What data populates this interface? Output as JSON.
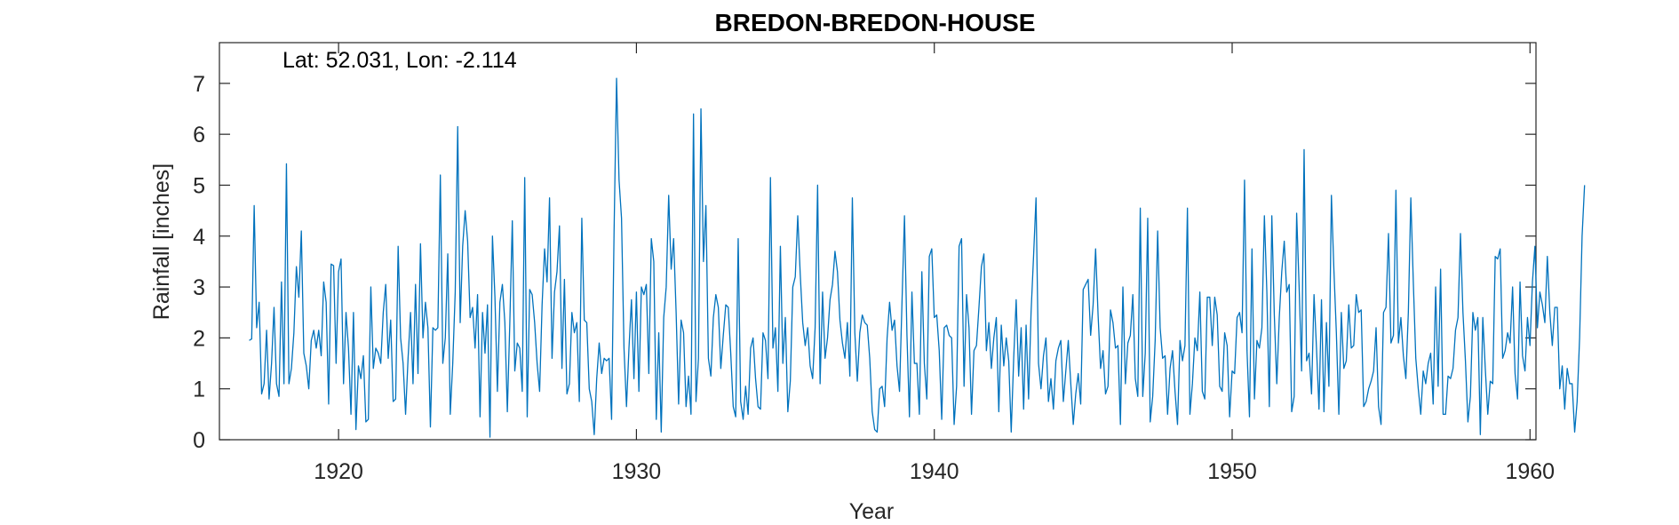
{
  "chart_data": {
    "type": "line",
    "title": "BREDON-BREDON-HOUSE",
    "xlabel": "Year",
    "ylabel": "Rainfall [inches]",
    "annotation": "Lat: 52.031, Lon: -2.114",
    "xlim": [
      1916,
      1960.2
    ],
    "ylim": [
      0,
      7.8
    ],
    "xticks": [
      1920,
      1930,
      1940,
      1950,
      1960
    ],
    "yticks": [
      0,
      1,
      2,
      3,
      4,
      5,
      6,
      7
    ],
    "grid": false,
    "colors": {
      "line": "#0072BD",
      "axis": "#262626"
    },
    "x_start": 1917.0,
    "x_step": 0.08333,
    "series": [
      {
        "values": [
          1.95,
          1.98,
          4.6,
          2.2,
          2.7,
          0.9,
          1.1,
          2.15,
          0.8,
          1.5,
          2.6,
          1.1,
          0.85,
          3.1,
          1.1,
          5.42,
          1.1,
          1.4,
          2.1,
          3.4,
          2.8,
          4.1,
          1.7,
          1.45,
          1.0,
          1.95,
          2.15,
          1.8,
          2.15,
          1.65,
          3.1,
          2.7,
          0.7,
          3.45,
          3.42,
          1.5,
          3.3,
          3.55,
          1.1,
          2.5,
          1.8,
          0.5,
          2.5,
          0.2,
          1.45,
          1.2,
          1.65,
          0.35,
          0.4,
          3.0,
          1.4,
          1.8,
          1.7,
          1.5,
          2.5,
          3.05,
          1.6,
          2.35,
          0.75,
          0.8,
          3.8,
          2.0,
          1.5,
          0.5,
          1.6,
          2.5,
          1.1,
          3.05,
          1.3,
          3.85,
          2.0,
          2.7,
          2.2,
          0.25,
          2.2,
          2.15,
          2.2,
          5.2,
          1.5,
          2.0,
          3.65,
          0.5,
          1.5,
          2.9,
          6.15,
          2.3,
          3.8,
          4.5,
          3.9,
          2.4,
          2.6,
          1.8,
          2.85,
          0.45,
          2.5,
          1.7,
          2.65,
          0.05,
          4.0,
          2.8,
          0.95,
          2.7,
          3.05,
          2.3,
          0.55,
          2.3,
          4.3,
          1.35,
          1.9,
          1.8,
          0.95,
          5.15,
          0.45,
          2.95,
          2.85,
          2.3,
          1.5,
          0.95,
          2.65,
          3.75,
          3.1,
          4.75,
          1.6,
          2.9,
          3.3,
          4.2,
          1.4,
          3.15,
          0.9,
          1.1,
          2.5,
          2.1,
          2.3,
          0.75,
          4.35,
          2.35,
          2.3,
          1.0,
          0.75,
          0.1,
          1.2,
          1.9,
          1.3,
          1.6,
          1.55,
          1.6,
          0.4,
          4.1,
          7.1,
          5.1,
          4.35,
          1.8,
          0.65,
          1.8,
          2.75,
          1.2,
          2.9,
          0.95,
          3.0,
          2.85,
          3.05,
          1.3,
          3.95,
          3.5,
          0.4,
          2.1,
          0.15,
          2.4,
          3.0,
          4.8,
          3.35,
          3.95,
          2.5,
          0.7,
          2.35,
          2.1,
          0.65,
          1.25,
          0.5,
          6.4,
          0.75,
          1.6,
          6.5,
          3.5,
          4.6,
          1.6,
          1.25,
          2.4,
          2.85,
          2.6,
          1.4,
          2.05,
          2.65,
          2.6,
          1.7,
          0.65,
          0.45,
          3.95,
          0.75,
          0.4,
          1.05,
          0.5,
          1.8,
          2.0,
          1.2,
          0.65,
          0.6,
          2.1,
          1.95,
          1.2,
          5.15,
          1.8,
          2.2,
          0.95,
          3.8,
          1.5,
          2.4,
          0.55,
          1.15,
          3.0,
          3.2,
          4.4,
          3.25,
          2.3,
          1.85,
          2.2,
          1.45,
          1.2,
          2.2,
          5.0,
          1.1,
          2.9,
          1.6,
          2.0,
          2.75,
          3.05,
          3.7,
          3.3,
          2.35,
          1.9,
          1.6,
          2.3,
          1.25,
          4.75,
          2.1,
          1.15,
          2.1,
          2.45,
          2.3,
          2.25,
          1.6,
          0.55,
          0.2,
          0.15,
          1.0,
          1.05,
          0.65,
          2.0,
          2.7,
          2.15,
          2.35,
          1.45,
          0.95,
          2.7,
          4.4,
          2.05,
          0.45,
          2.9,
          1.5,
          1.5,
          0.5,
          3.3,
          1.5,
          0.8,
          3.6,
          3.75,
          2.4,
          2.45,
          1.75,
          0.4,
          2.2,
          2.25,
          2.05,
          2.0,
          0.3,
          1.05,
          3.8,
          3.95,
          1.05,
          2.85,
          2.2,
          0.5,
          1.75,
          1.85,
          2.6,
          3.4,
          3.65,
          1.75,
          2.3,
          1.4,
          2.0,
          2.4,
          0.55,
          2.25,
          1.45,
          2.0,
          1.55,
          0.15,
          1.6,
          2.75,
          1.25,
          2.2,
          0.6,
          2.25,
          0.8,
          2.5,
          3.6,
          4.75,
          1.5,
          1.0,
          1.65,
          2.0,
          0.75,
          1.2,
          0.6,
          1.55,
          1.8,
          1.95,
          0.75,
          1.35,
          1.95,
          1.1,
          0.3,
          0.9,
          1.3,
          0.7,
          2.95,
          3.05,
          3.15,
          2.05,
          2.65,
          3.75,
          2.45,
          1.4,
          1.75,
          0.9,
          1.05,
          2.55,
          2.3,
          1.8,
          1.85,
          0.3,
          3.0,
          1.1,
          1.9,
          2.05,
          2.85,
          1.2,
          0.85,
          4.55,
          0.85,
          1.7,
          4.35,
          0.35,
          0.85,
          1.95,
          4.1,
          2.2,
          1.6,
          1.65,
          0.5,
          1.4,
          1.75,
          0.95,
          0.3,
          1.95,
          1.55,
          1.85,
          4.55,
          0.5,
          1.1,
          2.0,
          1.75,
          2.9,
          0.95,
          0.8,
          2.8,
          2.8,
          1.85,
          2.8,
          2.45,
          1.05,
          0.95,
          2.1,
          1.85,
          0.45,
          1.35,
          1.3,
          2.4,
          2.5,
          2.1,
          5.1,
          1.75,
          0.45,
          3.75,
          0.8,
          1.95,
          1.8,
          2.2,
          4.4,
          2.9,
          0.65,
          4.4,
          2.45,
          1.1,
          2.4,
          3.3,
          3.9,
          2.9,
          3.05,
          0.55,
          0.85,
          4.45,
          3.0,
          1.35,
          5.7,
          1.55,
          1.7,
          0.9,
          2.85,
          1.8,
          0.6,
          2.75,
          0.55,
          2.3,
          1.05,
          4.8,
          3.35,
          2.1,
          0.5,
          2.5,
          1.4,
          1.55,
          2.65,
          1.8,
          1.85,
          2.85,
          2.5,
          2.55,
          0.65,
          0.75,
          1.0,
          1.15,
          1.35,
          2.2,
          0.65,
          0.3,
          2.5,
          2.6,
          4.05,
          1.9,
          2.05,
          4.9,
          1.9,
          2.4,
          1.65,
          1.2,
          2.5,
          4.75,
          3.1,
          1.6,
          1.0,
          0.5,
          1.35,
          1.1,
          1.5,
          1.7,
          0.7,
          3.0,
          1.05,
          3.35,
          0.5,
          0.5,
          1.25,
          1.2,
          1.4,
          2.15,
          2.4,
          4.05,
          2.5,
          1.55,
          0.35,
          0.85,
          2.5,
          2.15,
          2.4,
          0.1,
          2.4,
          1.4,
          0.5,
          1.15,
          1.1,
          3.6,
          3.55,
          3.75,
          1.6,
          1.75,
          2.1,
          1.9,
          3.0,
          1.3,
          0.8,
          3.1,
          1.65,
          1.35,
          2.4,
          1.85,
          3.1,
          3.8,
          2.2,
          2.9,
          2.65,
          2.3,
          3.6,
          2.5,
          1.85,
          2.6,
          2.6,
          1.0,
          1.45,
          0.6,
          1.4,
          1.1,
          1.1,
          0.15,
          0.75,
          2.0,
          4.0,
          5.0
        ]
      }
    ]
  }
}
